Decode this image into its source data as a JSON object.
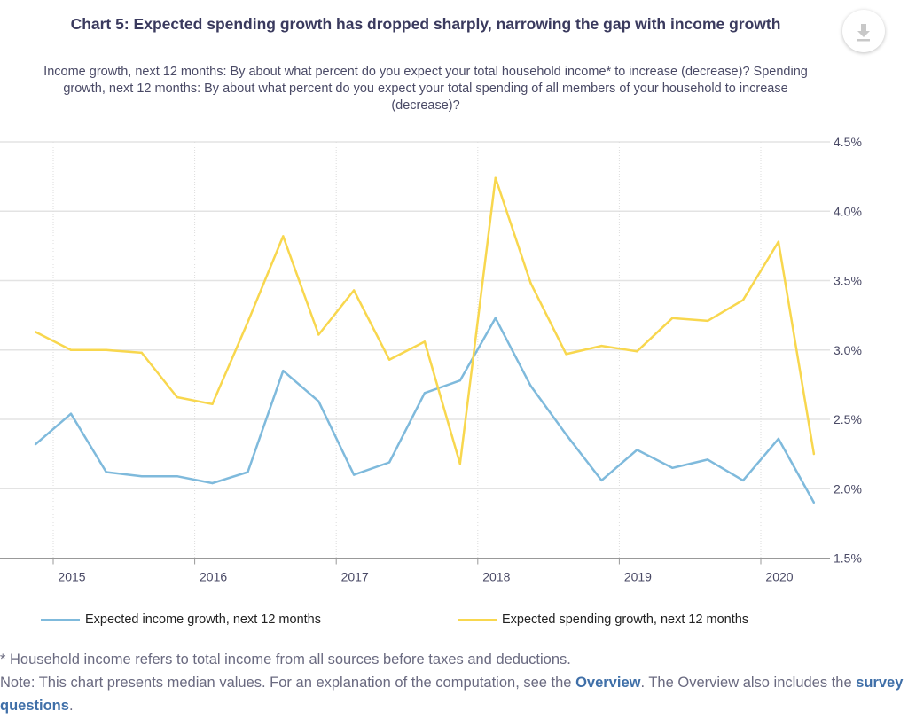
{
  "title": "Chart 5: Expected spending growth has dropped sharply, narrowing the gap with income growth",
  "subtitle": "Income growth, next 12 months: By about what percent do you expect your total household income* to increase (decrease)? Spending growth, next 12 months: By about what percent do you expect your total spending of all members of your household to increase (decrease)?",
  "download_icon": "download-icon",
  "chart_data": {
    "type": "line",
    "title": "Chart 5: Expected spending growth has dropped sharply, narrowing the gap with income growth",
    "x": [
      "2014-11",
      "2015-02",
      "2015-05",
      "2015-08",
      "2015-11",
      "2016-02",
      "2016-05",
      "2016-08",
      "2016-11",
      "2017-02",
      "2017-05",
      "2017-08",
      "2017-11",
      "2018-02",
      "2018-05",
      "2018-08",
      "2018-11",
      "2019-02",
      "2019-05",
      "2019-08",
      "2019-11",
      "2020-02",
      "2020-05"
    ],
    "x_ticks": [
      "2015",
      "2016",
      "2017",
      "2018",
      "2019",
      "2020"
    ],
    "y_ticks": [
      "1.5%",
      "2.0%",
      "2.5%",
      "3.0%",
      "3.5%",
      "4.0%",
      "4.5%"
    ],
    "ylim": [
      1.5,
      4.5
    ],
    "y_axis_side": "right",
    "grid": "horizontal solid, vertical dotted at years",
    "legend_placement": "bottom",
    "series": [
      {
        "name": "Expected income growth, next 12 months",
        "color": "#7fbadc",
        "values": [
          2.32,
          2.54,
          2.12,
          2.09,
          2.09,
          2.04,
          2.12,
          2.85,
          2.63,
          2.1,
          2.19,
          2.69,
          2.78,
          3.23,
          2.74,
          2.39,
          2.06,
          2.28,
          2.15,
          2.21,
          2.06,
          2.36,
          1.9
        ]
      },
      {
        "name": "Expected spending growth, next 12 months",
        "color": "#f8d74e",
        "values": [
          3.13,
          3.0,
          3.0,
          2.98,
          2.66,
          2.61,
          3.2,
          3.82,
          3.11,
          3.43,
          2.93,
          3.06,
          2.18,
          4.24,
          3.48,
          2.97,
          3.03,
          2.99,
          3.23,
          3.21,
          3.36,
          3.78,
          2.25
        ]
      }
    ]
  },
  "footnote": {
    "line1": "* Household income refers to total income from all sources before taxes and deductions.",
    "note_prefix": "Note: This chart presents median values. For an explanation of the computation, see the ",
    "overview_link": "Overview",
    "note_middle": ". The Overview also includes the ",
    "survey_link": "survey questions",
    "note_end": "."
  }
}
